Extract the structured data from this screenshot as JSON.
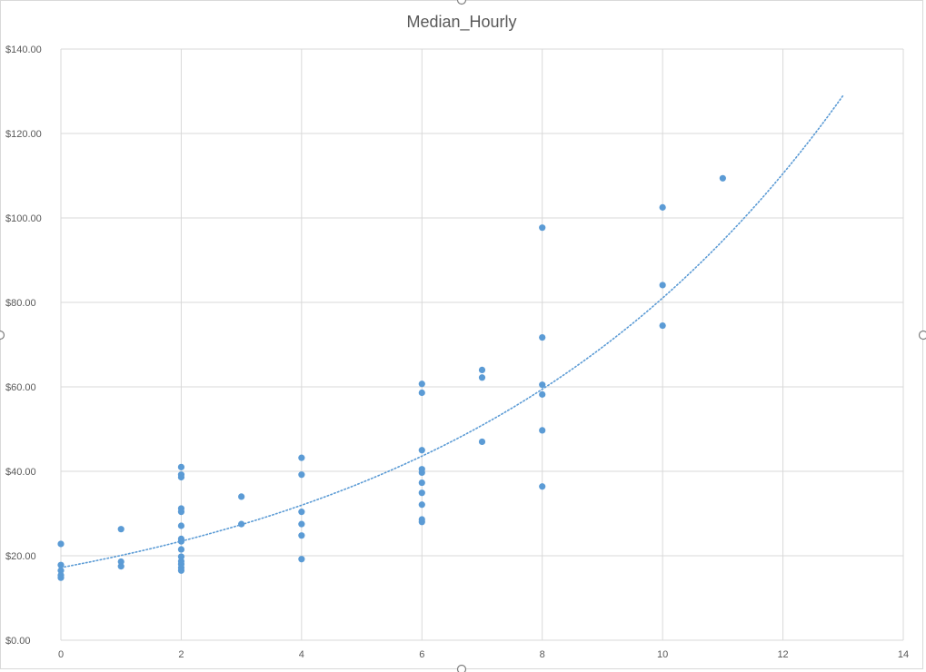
{
  "chart_data": {
    "type": "scatter",
    "title": "Median_Hourly",
    "xlabel": "",
    "ylabel": "",
    "xlim": [
      0,
      14
    ],
    "ylim": [
      0,
      140
    ],
    "x_ticks": [
      "0",
      "2",
      "4",
      "6",
      "8",
      "10",
      "12",
      "14"
    ],
    "x_tick_values": [
      0,
      2,
      4,
      6,
      8,
      10,
      12,
      14
    ],
    "y_ticks": [
      "$0.00",
      "$20.00",
      "$40.00",
      "$60.00",
      "$80.00",
      "$100.00",
      "$120.00",
      "$140.00"
    ],
    "y_tick_values": [
      0,
      20,
      40,
      60,
      80,
      100,
      120,
      140
    ],
    "grid": true,
    "legend": "none",
    "marker_color": "#5B9BD5",
    "trendline": {
      "type": "exponential",
      "style": "dotted",
      "color": "#5B9BD5",
      "a": 17.2,
      "b": 0.155,
      "x_range": [
        0,
        13
      ]
    },
    "points": [
      {
        "x": 0,
        "y": 22.8
      },
      {
        "x": 0,
        "y": 17.8
      },
      {
        "x": 0,
        "y": 16.5
      },
      {
        "x": 0,
        "y": 15.4
      },
      {
        "x": 0,
        "y": 14.8
      },
      {
        "x": 1,
        "y": 26.3
      },
      {
        "x": 1,
        "y": 18.6
      },
      {
        "x": 1,
        "y": 17.5
      },
      {
        "x": 2,
        "y": 41.0
      },
      {
        "x": 2,
        "y": 39.2
      },
      {
        "x": 2,
        "y": 38.6
      },
      {
        "x": 2,
        "y": 31.2
      },
      {
        "x": 2,
        "y": 30.4
      },
      {
        "x": 2,
        "y": 27.1
      },
      {
        "x": 2,
        "y": 24.0
      },
      {
        "x": 2,
        "y": 23.4
      },
      {
        "x": 2,
        "y": 21.5
      },
      {
        "x": 2,
        "y": 19.8
      },
      {
        "x": 2,
        "y": 18.7
      },
      {
        "x": 2,
        "y": 18.0
      },
      {
        "x": 2,
        "y": 17.2
      },
      {
        "x": 2,
        "y": 16.5
      },
      {
        "x": 3,
        "y": 34.0
      },
      {
        "x": 3,
        "y": 27.5
      },
      {
        "x": 4,
        "y": 43.2
      },
      {
        "x": 4,
        "y": 39.2
      },
      {
        "x": 4,
        "y": 30.4
      },
      {
        "x": 4,
        "y": 27.5
      },
      {
        "x": 4,
        "y": 24.8
      },
      {
        "x": 4,
        "y": 19.2
      },
      {
        "x": 6,
        "y": 60.7
      },
      {
        "x": 6,
        "y": 58.6
      },
      {
        "x": 6,
        "y": 45.0
      },
      {
        "x": 6,
        "y": 40.5
      },
      {
        "x": 6,
        "y": 39.7
      },
      {
        "x": 6,
        "y": 37.3
      },
      {
        "x": 6,
        "y": 34.9
      },
      {
        "x": 6,
        "y": 32.1
      },
      {
        "x": 6,
        "y": 28.6
      },
      {
        "x": 6,
        "y": 28.0
      },
      {
        "x": 7,
        "y": 64.0
      },
      {
        "x": 7,
        "y": 62.2
      },
      {
        "x": 7,
        "y": 47.0
      },
      {
        "x": 8,
        "y": 97.7
      },
      {
        "x": 8,
        "y": 71.7
      },
      {
        "x": 8,
        "y": 60.5
      },
      {
        "x": 8,
        "y": 58.2
      },
      {
        "x": 8,
        "y": 49.7
      },
      {
        "x": 8,
        "y": 36.4
      },
      {
        "x": 10,
        "y": 102.5
      },
      {
        "x": 10,
        "y": 84.1
      },
      {
        "x": 10,
        "y": 74.5
      },
      {
        "x": 11,
        "y": 109.4
      }
    ]
  }
}
